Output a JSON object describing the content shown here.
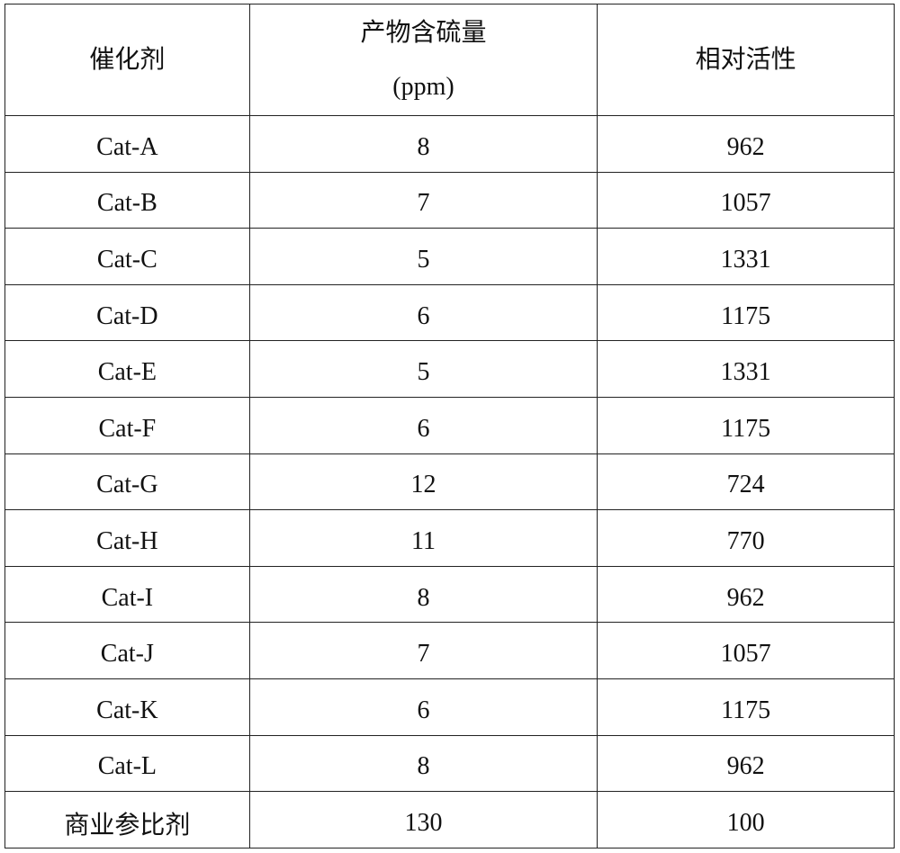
{
  "table": {
    "headers": [
      "催化剂",
      "产物含硫量",
      "(ppm)",
      "相对活性"
    ],
    "rows": [
      [
        "Cat-A",
        "8",
        "962"
      ],
      [
        "Cat-B",
        "7",
        "1057"
      ],
      [
        "Cat-C",
        "5",
        "1331"
      ],
      [
        "Cat-D",
        "6",
        "1175"
      ],
      [
        "Cat-E",
        "5",
        "1331"
      ],
      [
        "Cat-F",
        "6",
        "1175"
      ],
      [
        "Cat-G",
        "12",
        "724"
      ],
      [
        "Cat-H",
        "11",
        "770"
      ],
      [
        "Cat-I",
        "8",
        "962"
      ],
      [
        "Cat-J",
        "7",
        "1057"
      ],
      [
        "Cat-K",
        "6",
        "1175"
      ],
      [
        "Cat-L",
        "8",
        "962"
      ],
      [
        "商业参比剂",
        "130",
        "100"
      ]
    ]
  }
}
